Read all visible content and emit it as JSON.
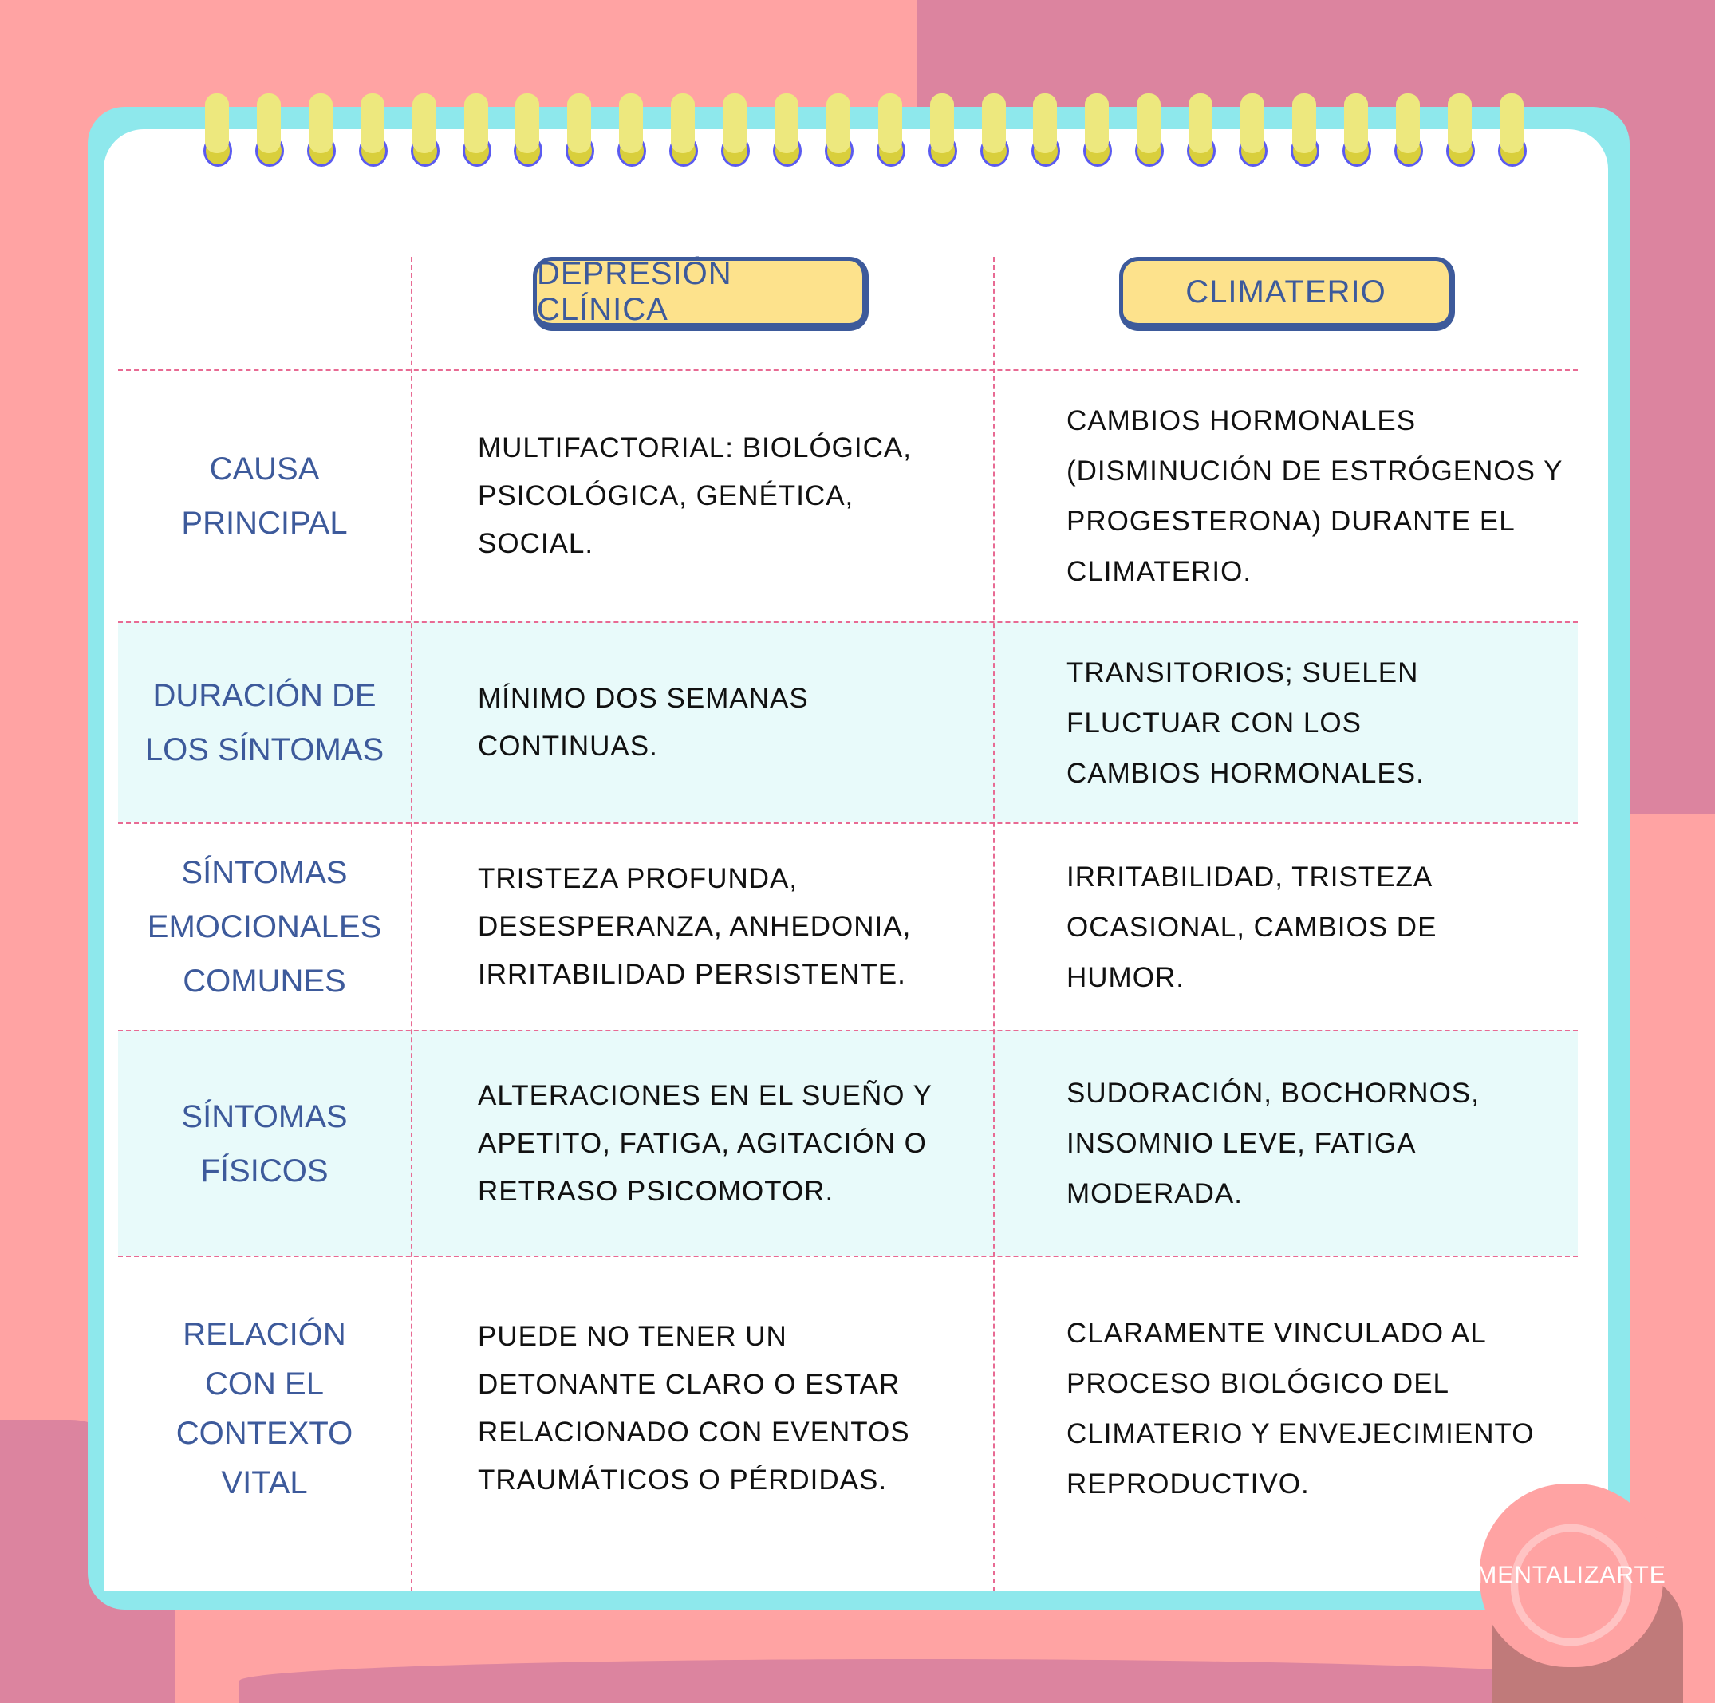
{
  "colors": {
    "background": "#ffa3a3",
    "accent_blob": "#dc849f",
    "frame": "#8ee8ec",
    "header_fill": "#fde28c",
    "label_blue": "#3d5a9b",
    "divider": "#e86a93",
    "row_shade": "#e8fafa"
  },
  "header": {
    "col1": "DEPRESIÓN CLÍNICA",
    "col2": "CLIMATERIO"
  },
  "rows": [
    {
      "label": "CAUSA PRINCIPAL",
      "depresion": "MULTIFACTORIAL: BIOLÓGICA, PSICOLÓGICA, GENÉTICA, SOCIAL.",
      "climaterio": "CAMBIOS HORMONALES (DISMINUCIÓN DE ESTRÓGENOS Y PROGESTERONA) DURANTE EL CLIMATERIO."
    },
    {
      "label": "DURACIÓN DE LOS SÍNTOMAS",
      "depresion": "MÍNIMO DOS SEMANAS CONTINUAS.",
      "climaterio": "TRANSITORIOS; SUELEN FLUCTUAR CON LOS CAMBIOS HORMONALES."
    },
    {
      "label": "SÍNTOMAS EMOCIONALES COMUNES",
      "depresion": "TRISTEZA PROFUNDA, DESESPERANZA, ANHEDONIA, IRRITABILIDAD PERSISTENTE.",
      "climaterio": "IRRITABILIDAD, TRISTEZA OCASIONAL, CAMBIOS DE HUMOR."
    },
    {
      "label": "SÍNTOMAS FÍSICOS",
      "depresion": "ALTERACIONES EN EL SUEÑO Y APETITO, FATIGA, AGITACIÓN O RETRASO PSICOMOTOR.",
      "climaterio": "SUDORACIÓN, BOCHORNOS, INSOMNIO LEVE, FATIGA MODERADA."
    },
    {
      "label": "RELACIÓN CON EL CONTEXTO VITAL",
      "depresion": "PUEDE NO TENER UN DETONANTE CLARO O ESTAR RELACIONADO CON EVENTOS TRAUMÁTICOS O PÉRDIDAS.",
      "climaterio": "CLARAMENTE VINCULADO AL PROCESO BIOLÓGICO DEL CLIMATERIO Y ENVEJECIMIENTO REPRODUCTIVO."
    }
  ],
  "logo": {
    "text": "MENTALIZARTE",
    "icon": "brain-icon"
  }
}
